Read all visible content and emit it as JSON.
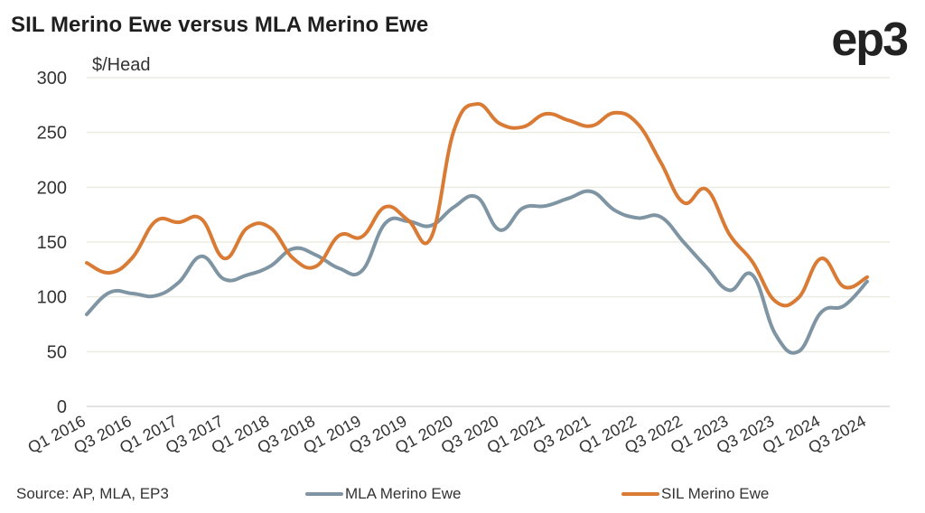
{
  "header": {
    "title": "SIL Merino Ewe versus MLA Merino Ewe",
    "logo": "ep3"
  },
  "footer": {
    "source": "Source: AP, MLA, EP3"
  },
  "chart_data": {
    "type": "line",
    "title": "SIL Merino Ewe versus MLA Merino Ewe",
    "xlabel": "",
    "ylabel": "$/Head",
    "ylim": [
      0,
      300
    ],
    "yticks": [
      0,
      50,
      100,
      150,
      200,
      250,
      300
    ],
    "grid": true,
    "legend_position": "bottom",
    "x": [
      "Q1 2016",
      "Q2 2016",
      "Q3 2016",
      "Q4 2016",
      "Q1 2017",
      "Q2 2017",
      "Q3 2017",
      "Q4 2017",
      "Q1 2018",
      "Q2 2018",
      "Q3 2018",
      "Q4 2018",
      "Q1 2019",
      "Q2 2019",
      "Q3 2019",
      "Q4 2019",
      "Q1 2020",
      "Q2 2020",
      "Q3 2020",
      "Q4 2020",
      "Q1 2021",
      "Q2 2021",
      "Q3 2021",
      "Q4 2021",
      "Q1 2022",
      "Q2 2022",
      "Q3 2022",
      "Q4 2022",
      "Q1 2023",
      "Q2 2023",
      "Q3 2023",
      "Q4 2023",
      "Q1 2024",
      "Q2 2024",
      "Q3 2024"
    ],
    "xtick_labels": [
      "Q1 2016",
      "Q3 2016",
      "Q1 2017",
      "Q3 2017",
      "Q1 2018",
      "Q3 2018",
      "Q1 2019",
      "Q3 2019",
      "Q1 2020",
      "Q3 2020",
      "Q1 2021",
      "Q3 2021",
      "Q1 2022",
      "Q3 2022",
      "Q1 2023",
      "Q3 2023",
      "Q1 2024",
      "Q3 2024"
    ],
    "series": [
      {
        "name": "MLA Merino Ewe",
        "color": "#7f95a3",
        "values": [
          84,
          104,
          103,
          101,
          113,
          137,
          116,
          120,
          128,
          144,
          138,
          126,
          124,
          167,
          169,
          165,
          182,
          191,
          161,
          181,
          183,
          190,
          196,
          179,
          172,
          173,
          150,
          127,
          106,
          120,
          66,
          50,
          86,
          92,
          114
        ]
      },
      {
        "name": "SIL Merino Ewe",
        "color": "#d97b35",
        "values": [
          131,
          122,
          136,
          169,
          168,
          171,
          135,
          163,
          163,
          135,
          128,
          156,
          155,
          182,
          170,
          154,
          252,
          276,
          258,
          255,
          267,
          261,
          256,
          268,
          258,
          223,
          186,
          198,
          157,
          132,
          96,
          99,
          135,
          109,
          118
        ]
      }
    ]
  }
}
